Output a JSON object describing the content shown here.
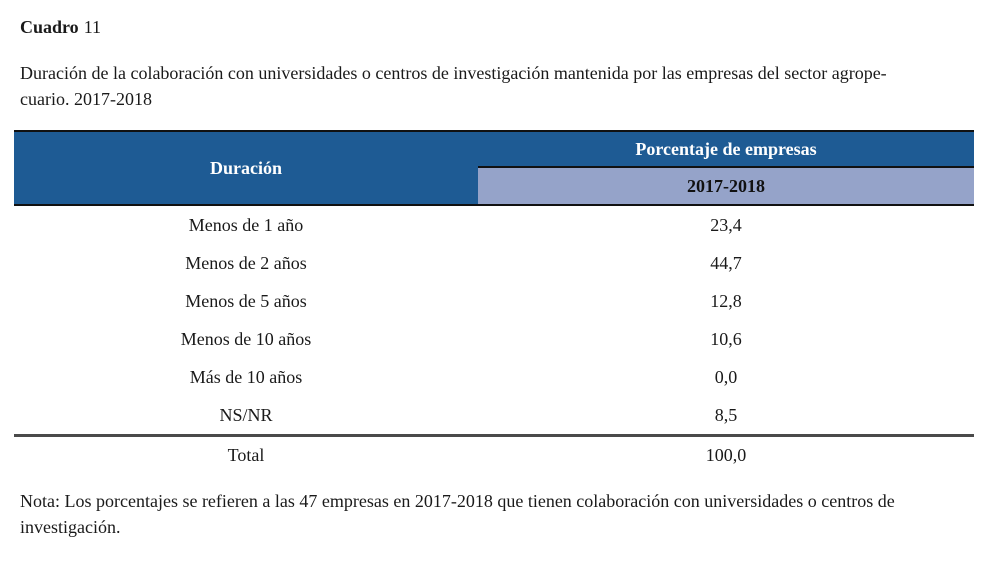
{
  "title": {
    "bold": "Cuadro",
    "number": "11"
  },
  "subtitle": {
    "lines": [
      "Duración de la colaboración con universidades o centros de investigación mantenida por las empresas del sector agrope-",
      "cuario. 2017-2018"
    ]
  },
  "table": {
    "col1_header": "Duración",
    "col2_header_top": "Porcentaje de empresas",
    "col2_header_bottom": "2017-2018",
    "rows": [
      {
        "label": "Menos de 1 año",
        "value": "23,4"
      },
      {
        "label": "Menos de 2 años",
        "value": "44,7"
      },
      {
        "label": "Menos de 5 años",
        "value": "12,8"
      },
      {
        "label": "Menos de 10 años",
        "value": "10,6"
      },
      {
        "label": "Más de 10 años",
        "value": "0,0"
      },
      {
        "label": "NS/NR",
        "value": "8,5"
      }
    ],
    "total": {
      "label": "Total",
      "value": "100,0"
    },
    "colors": {
      "header_dark": "#1E5B94",
      "header_light": "#95A3C9",
      "header_border": "#111111",
      "total_rule": "#4A4A4A"
    }
  },
  "note": {
    "lines": [
      "Nota: Los porcentajes se refieren a las 47 empresas en 2017-2018 que tienen colaboración con universidades o centros de",
      "investigación."
    ]
  }
}
